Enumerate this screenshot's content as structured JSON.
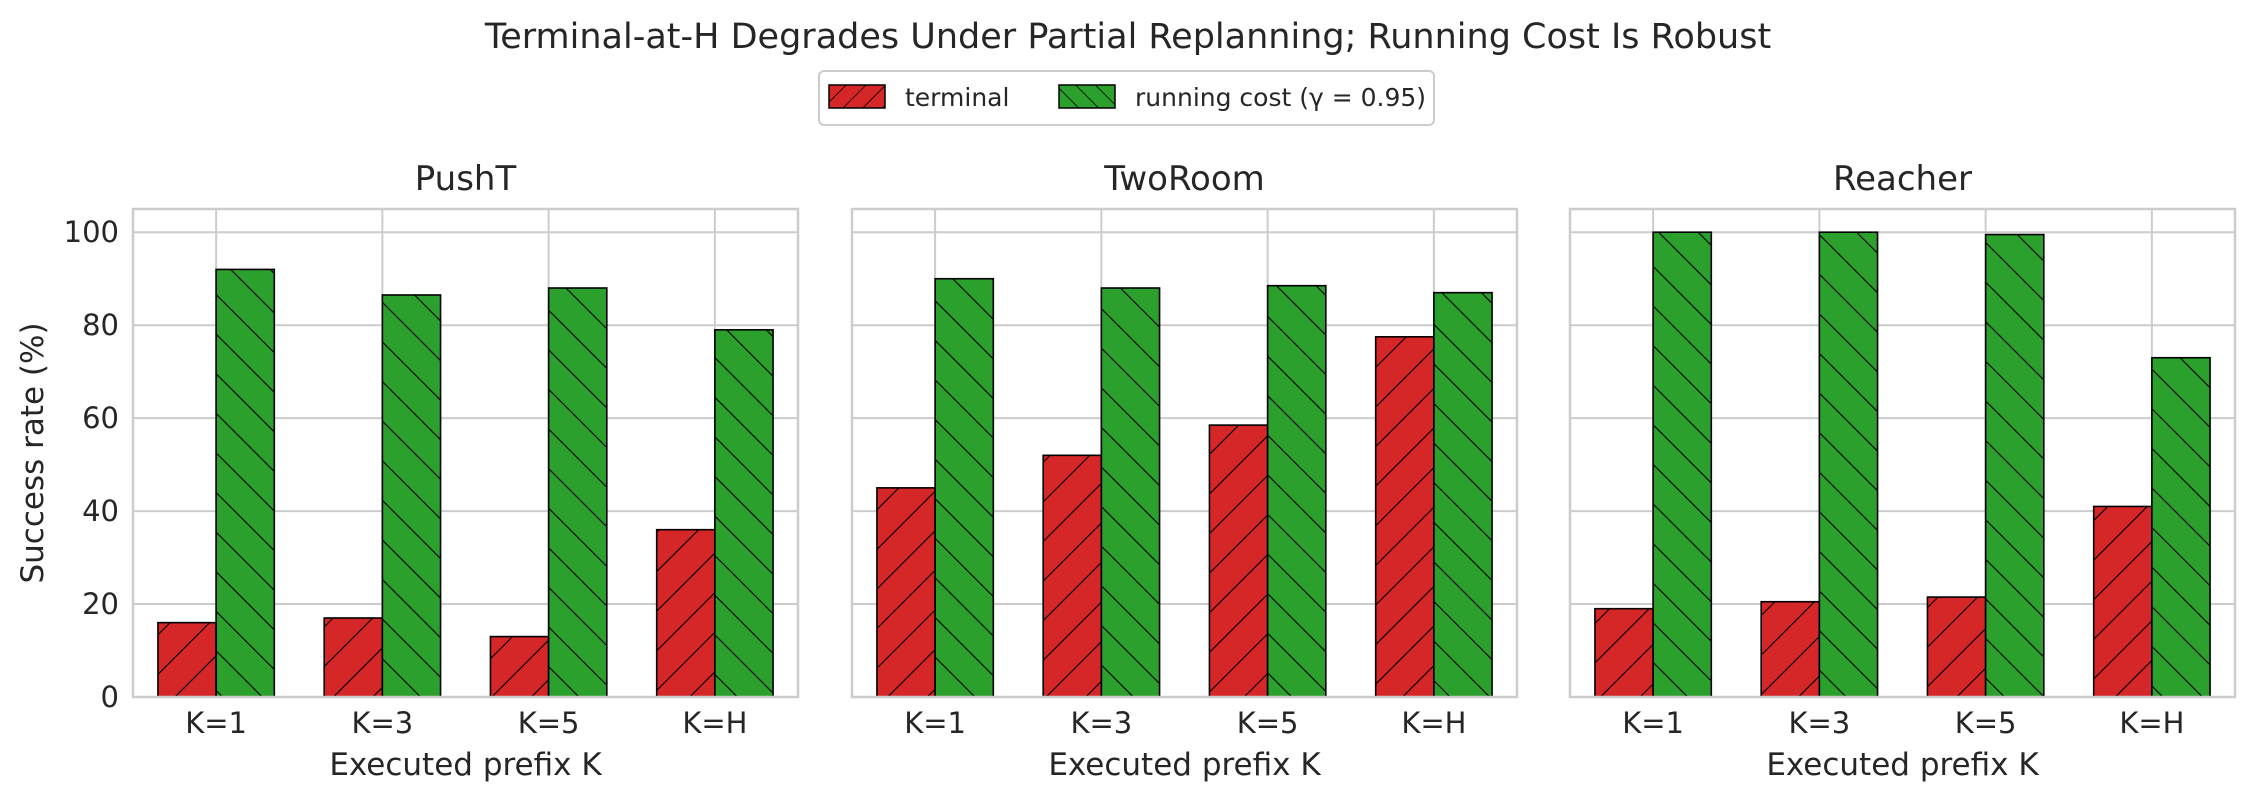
{
  "figure": {
    "title": "Terminal-at-H Degrades Under Partial Replanning; Running Cost Is Robust"
  },
  "legend": {
    "placement": "top-center",
    "entries": [
      {
        "label": "terminal",
        "color": "#d62728",
        "hatch": "forward-diagonal"
      },
      {
        "label": "running cost (γ = 0.95)",
        "color": "#2ca02c",
        "hatch": "back-diagonal"
      }
    ]
  },
  "chart_data": [
    {
      "type": "bar",
      "title": "PushT",
      "xlabel": "Executed prefix K",
      "ylabel": "Success rate (%)",
      "categories": [
        "K=1",
        "K=3",
        "K=5",
        "K=H"
      ],
      "ylim": [
        0,
        105
      ],
      "yticks": [
        0,
        20,
        40,
        60,
        80,
        100
      ],
      "grid": true,
      "series": [
        {
          "name": "terminal",
          "values": [
            16,
            17,
            13,
            36
          ]
        },
        {
          "name": "running cost (γ = 0.95)",
          "values": [
            92,
            86.5,
            88,
            79
          ]
        }
      ]
    },
    {
      "type": "bar",
      "title": "TwoRoom",
      "xlabel": "Executed prefix K",
      "ylabel": "",
      "categories": [
        "K=1",
        "K=3",
        "K=5",
        "K=H"
      ],
      "ylim": [
        0,
        105
      ],
      "yticks": [
        0,
        20,
        40,
        60,
        80,
        100
      ],
      "grid": true,
      "series": [
        {
          "name": "terminal",
          "values": [
            45,
            52,
            58.5,
            77.5
          ]
        },
        {
          "name": "running cost (γ = 0.95)",
          "values": [
            90,
            88,
            88.5,
            87
          ]
        }
      ]
    },
    {
      "type": "bar",
      "title": "Reacher",
      "xlabel": "Executed prefix K",
      "ylabel": "",
      "categories": [
        "K=1",
        "K=3",
        "K=5",
        "K=H"
      ],
      "ylim": [
        0,
        105
      ],
      "yticks": [
        0,
        20,
        40,
        60,
        80,
        100
      ],
      "grid": true,
      "series": [
        {
          "name": "terminal",
          "values": [
            19,
            20.5,
            21.5,
            41
          ]
        },
        {
          "name": "running cost (γ = 0.95)",
          "values": [
            100,
            100,
            99.5,
            73
          ]
        }
      ]
    }
  ]
}
